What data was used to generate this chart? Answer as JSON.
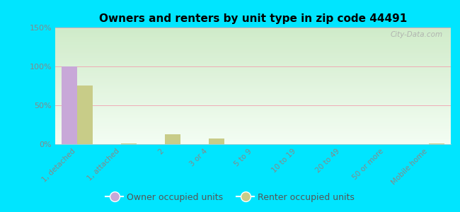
{
  "title": "Owners and renters by unit type in zip code 44491",
  "categories": [
    "1, detached",
    "1, attached",
    "2",
    "3 or 4",
    "5 to 9",
    "10 to 19",
    "20 to 49",
    "50 or more",
    "Mobile home"
  ],
  "owner_values": [
    100,
    0,
    0,
    0,
    0,
    0,
    0,
    0,
    0
  ],
  "renter_values": [
    75,
    1,
    13,
    7,
    0,
    0,
    0,
    0,
    1
  ],
  "owner_color": "#c8a8d8",
  "renter_color": "#c8cc88",
  "ylim": [
    0,
    150
  ],
  "yticks": [
    0,
    50,
    100,
    150
  ],
  "ytick_labels": [
    "0%",
    "50%",
    "100%",
    "150%"
  ],
  "background_color": "#00e5ff",
  "plot_bg_color": "#e8f5e0",
  "grid_color": "#f0a0b0",
  "watermark": "City-Data.com",
  "legend_owner": "Owner occupied units",
  "legend_renter": "Renter occupied units",
  "bar_width": 0.35,
  "tick_label_color": "#888888",
  "ytick_label_color": "#888888"
}
